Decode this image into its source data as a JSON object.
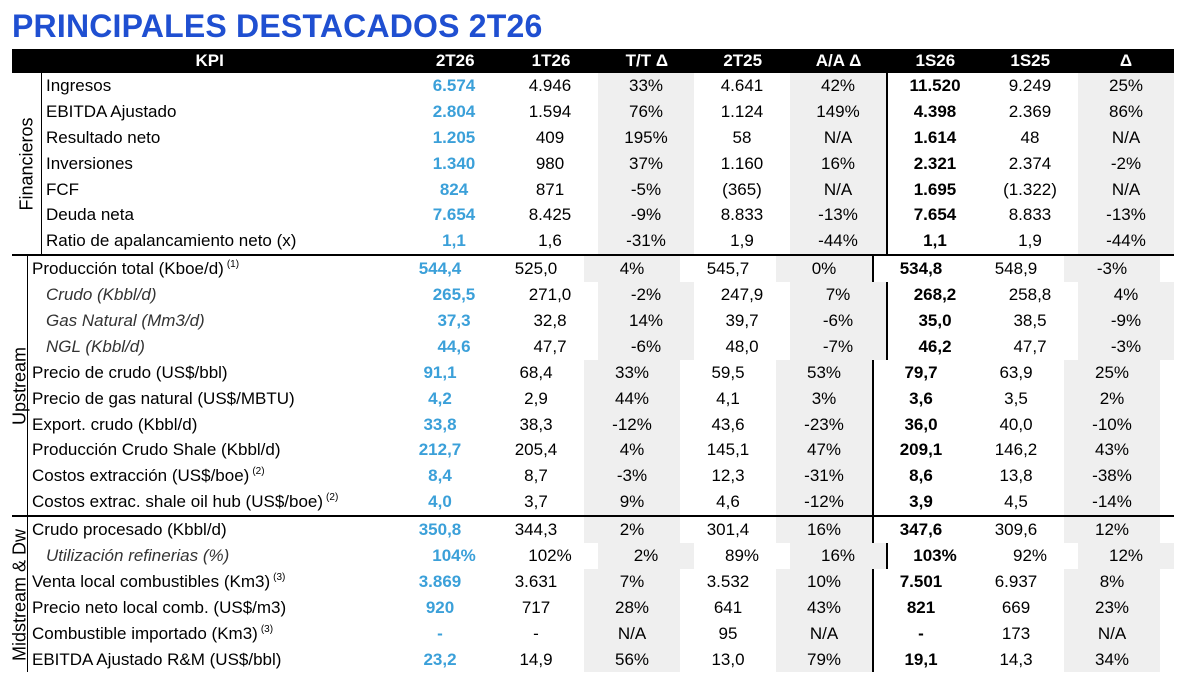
{
  "title": "PRINCIPALES DESTACADOS 2T26",
  "headers": [
    "KPI",
    "2T26",
    "1T26",
    "T/T Δ",
    "2T25",
    "A/A Δ",
    "1S26",
    "1S25",
    "Δ"
  ],
  "groups": [
    {
      "label": "Financieros",
      "rows": [
        {
          "kpi": "Ingresos",
          "note": "",
          "v": [
            "6.574",
            "4.946",
            "33%",
            "4.641",
            "42%",
            "11.520",
            "9.249",
            "25%"
          ]
        },
        {
          "kpi": "EBITDA Ajustado",
          "note": "",
          "v": [
            "2.804",
            "1.594",
            "76%",
            "1.124",
            "149%",
            "4.398",
            "2.369",
            "86%"
          ]
        },
        {
          "kpi": "Resultado neto",
          "note": "",
          "v": [
            "1.205",
            "409",
            "195%",
            "58",
            "N/A",
            "1.614",
            "48",
            "N/A"
          ]
        },
        {
          "kpi": "Inversiones",
          "note": "",
          "v": [
            "1.340",
            "980",
            "37%",
            "1.160",
            "16%",
            "2.321",
            "2.374",
            "-2%"
          ]
        },
        {
          "kpi": "FCF",
          "note": "",
          "v": [
            "824",
            "871",
            "-5%",
            "(365)",
            "N/A",
            "1.695",
            "(1.322)",
            "N/A"
          ]
        },
        {
          "kpi": "Deuda neta",
          "note": "",
          "v": [
            "7.654",
            "8.425",
            "-9%",
            "8.833",
            "-13%",
            "7.654",
            "8.833",
            "-13%"
          ]
        },
        {
          "kpi": "Ratio de apalancamiento neto (x)",
          "note": "",
          "v": [
            "1,1",
            "1,6",
            "-31%",
            "1,9",
            "-44%",
            "1,1",
            "1,9",
            "-44%"
          ]
        }
      ]
    },
    {
      "label": "Upstream",
      "rows": [
        {
          "kpi": "Producción total (Kboe/d)",
          "note": "(1)",
          "v": [
            "544,4",
            "525,0",
            "4%",
            "545,7",
            "0%",
            "534,8",
            "548,9",
            "-3%"
          ]
        },
        {
          "kpi": "Crudo (Kbbl/d)",
          "note": "",
          "sub": true,
          "v": [
            "265,5",
            "271,0",
            "-2%",
            "247,9",
            "7%",
            "268,2",
            "258,8",
            "4%"
          ]
        },
        {
          "kpi": "Gas Natural (Mm3/d)",
          "note": "",
          "sub": true,
          "v": [
            "37,3",
            "32,8",
            "14%",
            "39,7",
            "-6%",
            "35,0",
            "38,5",
            "-9%"
          ]
        },
        {
          "kpi": "NGL (Kbbl/d)",
          "note": "",
          "sub": true,
          "v": [
            "44,6",
            "47,7",
            "-6%",
            "48,0",
            "-7%",
            "46,2",
            "47,7",
            "-3%"
          ]
        },
        {
          "kpi": "Precio de crudo (US$/bbl)",
          "note": "",
          "v": [
            "91,1",
            "68,4",
            "33%",
            "59,5",
            "53%",
            "79,7",
            "63,9",
            "25%"
          ]
        },
        {
          "kpi": "Precio de gas natural (US$/MBTU)",
          "note": "",
          "v": [
            "4,2",
            "2,9",
            "44%",
            "4,1",
            "3%",
            "3,6",
            "3,5",
            "2%"
          ]
        },
        {
          "kpi": "Export. crudo (Kbbl/d)",
          "note": "",
          "v": [
            "33,8",
            "38,3",
            "-12%",
            "43,6",
            "-23%",
            "36,0",
            "40,0",
            "-10%"
          ]
        },
        {
          "kpi": "Producción Crudo Shale  (Kbbl/d)",
          "note": "",
          "v": [
            "212,7",
            "205,4",
            "4%",
            "145,1",
            "47%",
            "209,1",
            "146,2",
            "43%"
          ]
        },
        {
          "kpi": "Costos extracción (US$/boe)",
          "note": "(2)",
          "v": [
            "8,4",
            "8,7",
            "-3%",
            "12,3",
            "-31%",
            "8,6",
            "13,8",
            "-38%"
          ]
        },
        {
          "kpi": "Costos extrac. shale oil hub (US$/boe)",
          "note": "(2)",
          "v": [
            "4,0",
            "3,7",
            "9%",
            "4,6",
            "-12%",
            "3,9",
            "4,5",
            "-14%"
          ]
        }
      ]
    },
    {
      "label": "Midstream & Dw",
      "rows": [
        {
          "kpi": "Crudo procesado (Kbbl/d)",
          "note": "",
          "v": [
            "350,8",
            "344,3",
            "2%",
            "301,4",
            "16%",
            "347,6",
            "309,6",
            "12%"
          ]
        },
        {
          "kpi": "Utilización refinerias (%)",
          "note": "",
          "sub": true,
          "v": [
            "104%",
            "102%",
            "2%",
            "89%",
            "16%",
            "103%",
            "92%",
            "12%"
          ]
        },
        {
          "kpi": "Venta local combustibles (Km3)",
          "note": "(3)",
          "v": [
            "3.869",
            "3.631",
            "7%",
            "3.532",
            "10%",
            "7.501",
            "6.937",
            "8%"
          ]
        },
        {
          "kpi": "Precio neto local comb. (US$/m3)",
          "note": "",
          "v": [
            "920",
            "717",
            "28%",
            "641",
            "43%",
            "821",
            "669",
            "23%"
          ]
        },
        {
          "kpi": "Combustible importado (Km3)",
          "note": "(3)",
          "v": [
            "-",
            "-",
            "N/A",
            "95",
            "N/A",
            "-",
            "173",
            "N/A"
          ]
        },
        {
          "kpi": "EBITDA Ajustado R&M (US$/bbl)",
          "note": "",
          "v": [
            "23,2",
            "14,9",
            "56%",
            "13,0",
            "79%",
            "19,1",
            "14,3",
            "34%"
          ]
        }
      ]
    }
  ]
}
